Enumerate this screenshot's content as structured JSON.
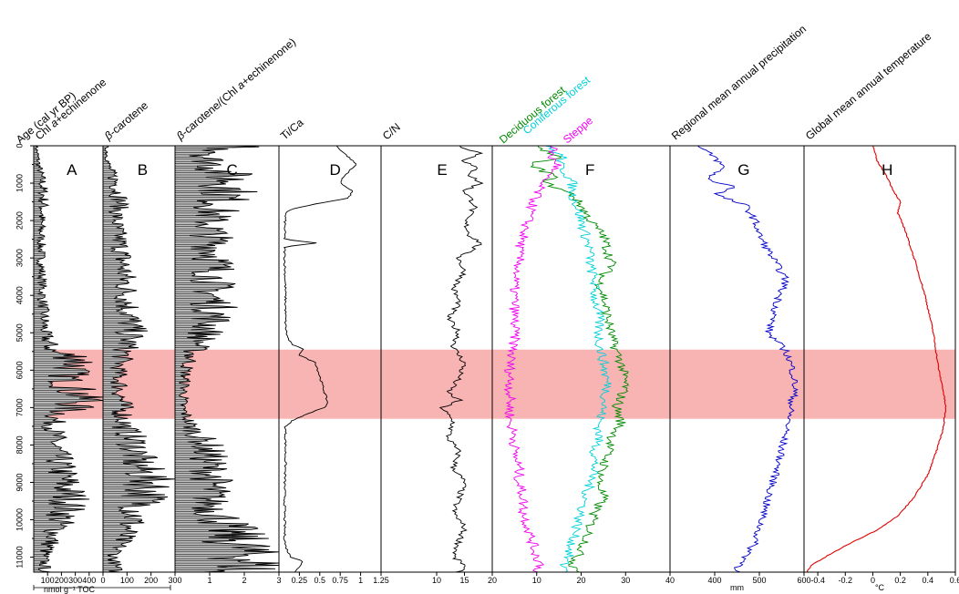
{
  "figure": {
    "age_axis_label": "Age (cal yr BP)",
    "shared_unit_label": "nmol g⁻¹ TOC",
    "highlight_color": "#f7a6a6",
    "highlight_range": [
      5450,
      7300
    ]
  },
  "chart_data": [
    {
      "type": "area",
      "letter": "A",
      "title": "Chl a+echinenone",
      "title_parts": [
        "Chl ",
        "a",
        "+echinenone"
      ],
      "xlim": [
        0,
        500
      ],
      "xticks": [
        100,
        200,
        300,
        400
      ],
      "tick_labels": [
        "100",
        "200",
        "300",
        "400"
      ],
      "ylim": [
        0,
        11400
      ],
      "color": "#000000",
      "profile": [
        [
          0,
          20
        ],
        [
          500,
          40
        ],
        [
          1000,
          70
        ],
        [
          1500,
          80
        ],
        [
          2000,
          60
        ],
        [
          3000,
          60
        ],
        [
          4000,
          70
        ],
        [
          5000,
          90
        ],
        [
          5500,
          150
        ],
        [
          5700,
          400
        ],
        [
          6000,
          300
        ],
        [
          6300,
          260
        ],
        [
          6600,
          350
        ],
        [
          6800,
          420
        ],
        [
          7000,
          300
        ],
        [
          7300,
          160
        ],
        [
          8000,
          170
        ],
        [
          9000,
          250
        ],
        [
          9500,
          300
        ],
        [
          10000,
          220
        ],
        [
          10500,
          150
        ],
        [
          11000,
          80
        ],
        [
          11400,
          90
        ]
      ]
    },
    {
      "type": "area",
      "letter": "B",
      "title": "β-carotene",
      "title_parts": [
        "",
        "β",
        "-carotene"
      ],
      "xlim": [
        0,
        300
      ],
      "xticks": [
        0,
        100,
        200,
        300
      ],
      "tick_labels": [
        "0",
        "100",
        "200",
        "300"
      ],
      "ylim": [
        0,
        11400
      ],
      "color": "#000000",
      "profile": [
        [
          0,
          15
        ],
        [
          500,
          25
        ],
        [
          1000,
          60
        ],
        [
          1500,
          80
        ],
        [
          2000,
          60
        ],
        [
          3000,
          90
        ],
        [
          4000,
          110
        ],
        [
          5000,
          130
        ],
        [
          5500,
          100
        ],
        [
          6000,
          70
        ],
        [
          6500,
          80
        ],
        [
          7000,
          90
        ],
        [
          7500,
          100
        ],
        [
          8000,
          150
        ],
        [
          8500,
          160
        ],
        [
          9000,
          230
        ],
        [
          9500,
          190
        ],
        [
          10000,
          140
        ],
        [
          10500,
          90
        ],
        [
          11000,
          50
        ],
        [
          11400,
          60
        ]
      ]
    },
    {
      "type": "area",
      "letter": "C",
      "title": "β-carotene/(Chl a+echinenone)",
      "title_parts": [
        "",
        "β",
        "-carotene/(Chl ",
        "a",
        "+echinenone)"
      ],
      "xlim": [
        0,
        3
      ],
      "xticks": [
        1,
        2,
        3
      ],
      "tick_labels": [
        "1",
        "2",
        "3"
      ],
      "ylim": [
        0,
        11400
      ],
      "color": "#000000",
      "profile": [
        [
          0,
          2.3
        ],
        [
          300,
          1.0
        ],
        [
          1000,
          1.9
        ],
        [
          1500,
          1.5
        ],
        [
          2000,
          1.1
        ],
        [
          3000,
          1.3
        ],
        [
          4000,
          1.2
        ],
        [
          4500,
          1.3
        ],
        [
          5000,
          1.0
        ],
        [
          5500,
          0.6
        ],
        [
          6000,
          0.35
        ],
        [
          6500,
          0.3
        ],
        [
          7000,
          0.25
        ],
        [
          7500,
          0.5
        ],
        [
          8000,
          1.0
        ],
        [
          8500,
          1.1
        ],
        [
          9000,
          1.2
        ],
        [
          9500,
          1.1
        ],
        [
          10000,
          1.5
        ],
        [
          10500,
          1.9
        ],
        [
          11000,
          2.4
        ],
        [
          11300,
          2.5
        ],
        [
          11400,
          1.0
        ]
      ]
    },
    {
      "type": "line",
      "letter": "D",
      "title": "Ti/Ca",
      "title_parts": [
        "Ti/Ca"
      ],
      "xlim": [
        0,
        1.25
      ],
      "xticks": [
        0.25,
        0.5,
        0.75,
        1,
        1.25
      ],
      "tick_labels": [
        "0.25",
        "0.5",
        "0.75",
        "1",
        "1.25"
      ],
      "ylim": [
        0,
        11400
      ],
      "color": "#000000",
      "x": [
        0.7,
        0.85,
        0.95,
        0.8,
        0.75,
        0.9,
        0.85,
        0.45,
        0.15,
        0.08,
        0.07,
        0.07,
        0.45,
        0.07,
        0.07,
        0.08,
        0.08,
        0.1,
        0.15,
        0.3,
        0.25,
        0.45,
        0.6,
        0.55,
        0.2,
        0.08,
        0.08,
        0.07,
        0.07,
        0.07,
        0.08,
        0.12,
        0.15,
        0.3,
        0.2
      ],
      "y": [
        0,
        300,
        500,
        800,
        1000,
        1200,
        1400,
        1550,
        1700,
        1800,
        2200,
        2500,
        2600,
        2700,
        3000,
        4000,
        4800,
        5100,
        5300,
        5450,
        5600,
        5800,
        6900,
        7000,
        7300,
        7500,
        8500,
        9000,
        10000,
        10500,
        10700,
        10900,
        11000,
        11100,
        11400
      ]
    },
    {
      "type": "line",
      "letter": "E",
      "title": "C/N",
      "title_parts": [
        "C/N"
      ],
      "xlim": [
        0,
        20
      ],
      "xticks": [
        10,
        15,
        20
      ],
      "tick_labels": [
        "10",
        "15",
        "20"
      ],
      "ylim": [
        0,
        11400
      ],
      "color": "#000000",
      "x": [
        14,
        18,
        15,
        17,
        16,
        18,
        15,
        16,
        17,
        15,
        16,
        18,
        14,
        15,
        13,
        14,
        12,
        14,
        13,
        15,
        14,
        12,
        14,
        11,
        13,
        12,
        14,
        13,
        15,
        14,
        13,
        15,
        14,
        13,
        15,
        14
      ],
      "y": [
        0,
        200,
        400,
        600,
        800,
        1000,
        1200,
        1400,
        1600,
        2000,
        2400,
        2600,
        3000,
        3400,
        3800,
        4200,
        4600,
        5000,
        5400,
        5800,
        6200,
        6600,
        6800,
        7000,
        7400,
        7800,
        8200,
        8600,
        9000,
        9400,
        9800,
        10200,
        10600,
        11000,
        11200,
        11400
      ]
    },
    {
      "type": "line",
      "letter": "F",
      "title": "",
      "xlim": [
        0,
        40
      ],
      "xticks": [
        10,
        20,
        30,
        40
      ],
      "tick_labels": [
        "10",
        "20",
        "30",
        "40"
      ],
      "ylim": [
        0,
        11400
      ],
      "series": [
        {
          "name": "Deciduous forest",
          "color": "#008a00",
          "x": [
            10,
            15,
            8,
            14,
            12,
            18,
            20,
            22,
            25,
            26,
            27,
            24,
            25,
            26,
            27,
            29,
            30,
            28,
            29,
            27,
            26,
            25,
            24,
            25,
            23,
            22,
            21,
            19,
            18,
            20
          ],
          "y": [
            0,
            300,
            500,
            800,
            1000,
            1300,
            1600,
            2000,
            2400,
            2800,
            3200,
            3600,
            4000,
            4600,
            5200,
            5800,
            6400,
            7000,
            7400,
            7800,
            8200,
            8600,
            9000,
            9400,
            9800,
            10200,
            10600,
            11000,
            11200,
            11400
          ]
        },
        {
          "name": "Coniferous forest",
          "color": "#00d0d8",
          "x": [
            12,
            16,
            15,
            17,
            18,
            18,
            19,
            20,
            21,
            22,
            22,
            23,
            23,
            24,
            24,
            25,
            26,
            25,
            24,
            24,
            23,
            23,
            22,
            21,
            20,
            19,
            18,
            17,
            16,
            17
          ],
          "y": [
            0,
            300,
            500,
            800,
            1000,
            1300,
            1600,
            2000,
            2400,
            2800,
            3200,
            3600,
            4000,
            4600,
            5200,
            5800,
            6400,
            7000,
            7400,
            7800,
            8200,
            8600,
            9000,
            9400,
            9800,
            10200,
            10600,
            11000,
            11200,
            11400
          ]
        },
        {
          "name": "Steppe",
          "color": "#f000f0",
          "x": [
            14,
            13,
            15,
            12,
            11,
            10,
            9,
            8,
            7,
            6,
            6,
            5,
            5,
            5,
            5,
            4,
            4,
            4,
            4,
            5,
            5,
            6,
            6,
            7,
            7,
            8,
            9,
            10,
            11,
            10
          ],
          "y": [
            0,
            300,
            500,
            800,
            1000,
            1300,
            1600,
            2000,
            2400,
            2800,
            3200,
            3600,
            4000,
            4600,
            5200,
            5800,
            6400,
            7000,
            7400,
            7800,
            8200,
            8600,
            9000,
            9400,
            9800,
            10200,
            10600,
            11000,
            11200,
            11400
          ]
        }
      ]
    },
    {
      "type": "line",
      "letter": "G",
      "title": "Regional mean annual precipitation",
      "title_parts": [
        "Regional mean annual precipitation"
      ],
      "xlabel": "mm",
      "xlim": [
        300,
        600
      ],
      "xticks": [
        400,
        500,
        600
      ],
      "tick_labels": [
        "400",
        "500",
        "600"
      ],
      "ylim": [
        0,
        11400
      ],
      "color": "#0000c8",
      "x": [
        360,
        400,
        420,
        380,
        450,
        400,
        470,
        490,
        500,
        520,
        540,
        560,
        545,
        530,
        520,
        560,
        575,
        580,
        570,
        565,
        555,
        545,
        530,
        520,
        510,
        500,
        490,
        470,
        460,
        450,
        460
      ],
      "y": [
        0,
        300,
        600,
        900,
        1100,
        1300,
        1600,
        2000,
        2400,
        2800,
        3200,
        3600,
        4000,
        4600,
        5000,
        5500,
        6000,
        6500,
        7000,
        7400,
        7800,
        8400,
        9000,
        9400,
        9800,
        10200,
        10600,
        11000,
        11200,
        11300,
        11400
      ]
    },
    {
      "type": "line",
      "letter": "H",
      "title": "Global mean annual temperature",
      "title_parts": [
        "Global mean annual temperature"
      ],
      "xlabel": "°C",
      "xlim": [
        -0.5,
        0.6
      ],
      "xticks": [
        -0.4,
        -0.2,
        0,
        0.2,
        0.4,
        0.6
      ],
      "tick_labels": [
        "-0.4",
        "-0.2",
        "0",
        "0.2",
        "0.4",
        "0.6"
      ],
      "ylim": [
        0,
        11400
      ],
      "color": "#e00000",
      "x": [
        0,
        0.03,
        0.1,
        0.15,
        0.2,
        0.18,
        0.23,
        0.3,
        0.38,
        0.44,
        0.48,
        0.51,
        0.53,
        0.51,
        0.46,
        0.4,
        0.3,
        0.18,
        0.02,
        -0.15,
        -0.3,
        -0.44,
        -0.48
      ],
      "y": [
        0,
        400,
        800,
        1200,
        1500,
        1800,
        2200,
        3000,
        4000,
        5000,
        6000,
        6500,
        7000,
        7600,
        8200,
        8800,
        9400,
        9900,
        10300,
        10600,
        10900,
        11200,
        11400
      ]
    }
  ]
}
